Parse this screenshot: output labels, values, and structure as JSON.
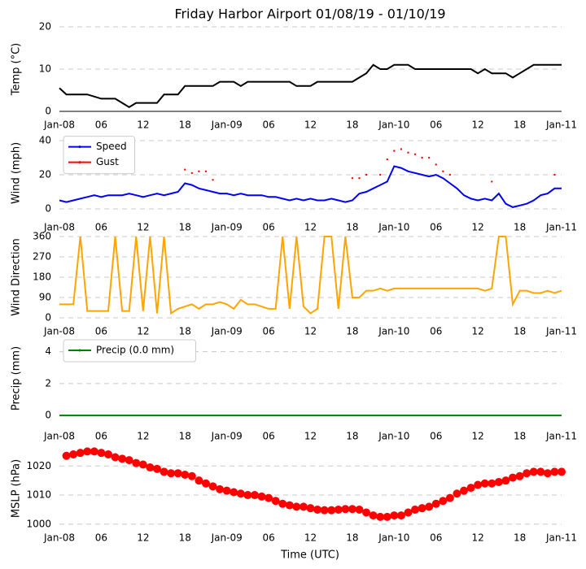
{
  "chart_data": [
    {
      "type": "line",
      "title": "Friday Harbor Airport 01/08/19 - 01/10/19",
      "ylabel": "Temp (°C)",
      "x": [
        0,
        1,
        2,
        3,
        4,
        5,
        6,
        7,
        8,
        9,
        10,
        11,
        12,
        13,
        14,
        15,
        16,
        17,
        18,
        19,
        20,
        21,
        22,
        23,
        24,
        25,
        26,
        27,
        28,
        29,
        30,
        31,
        32,
        33,
        34,
        35,
        36,
        37,
        38,
        39,
        40,
        41,
        42,
        43,
        44,
        45,
        46,
        47,
        48,
        49,
        50,
        51,
        52,
        53,
        54,
        55,
        56,
        57,
        58,
        59,
        60,
        61,
        62,
        63,
        64,
        65,
        66,
        67,
        68,
        69,
        70,
        71,
        72
      ],
      "series": [
        {
          "color": "#000000",
          "values": [
            5.5,
            4,
            4,
            4,
            4,
            3.5,
            3,
            3,
            3,
            2,
            1,
            2,
            2,
            2,
            2,
            4,
            4,
            4,
            6,
            6,
            6,
            6,
            6,
            7,
            7,
            7,
            6,
            7,
            7,
            7,
            7,
            7,
            7,
            7,
            6,
            6,
            6,
            7,
            7,
            7,
            7,
            7,
            7,
            8,
            9,
            11,
            10,
            10,
            11,
            11,
            11,
            10,
            10,
            10,
            10,
            10,
            10,
            10,
            10,
            10,
            9,
            10,
            9,
            9,
            9,
            8,
            9,
            10,
            11,
            11,
            11,
            11,
            11
          ]
        }
      ],
      "xlim": [
        0,
        72
      ],
      "ylim": [
        0,
        20
      ],
      "yticks": [
        0,
        10,
        20
      ],
      "grid": true,
      "xticks": [
        {
          "value": 0,
          "label": "Jan-08"
        },
        {
          "value": 6,
          "label": "06"
        },
        12,
        18,
        {
          "value": 24,
          "label": "Jan-09"
        },
        {
          "value": 30,
          "label": "06"
        },
        {
          "value": 36,
          "label": "12"
        },
        {
          "value": 42,
          "label": "18"
        },
        {
          "value": 48,
          "label": "Jan-10"
        },
        {
          "value": 54,
          "label": "06"
        },
        {
          "value": 60,
          "label": "12"
        },
        {
          "value": 66,
          "label": "18"
        },
        {
          "value": 72,
          "label": "Jan-11"
        }
      ]
    },
    {
      "type": "line",
      "ylabel": "Wind (mph)",
      "legend": "upper left",
      "x": [
        0,
        1,
        2,
        3,
        4,
        5,
        6,
        7,
        8,
        9,
        10,
        11,
        12,
        13,
        14,
        15,
        16,
        17,
        18,
        19,
        20,
        21,
        22,
        23,
        24,
        25,
        26,
        27,
        28,
        29,
        30,
        31,
        32,
        33,
        34,
        35,
        36,
        37,
        38,
        39,
        40,
        41,
        42,
        43,
        44,
        45,
        46,
        47,
        48,
        49,
        50,
        51,
        52,
        53,
        54,
        55,
        56,
        57,
        58,
        59,
        60,
        61,
        62,
        63,
        64,
        65,
        66,
        67,
        68,
        69,
        70,
        71,
        72
      ],
      "series": [
        {
          "name": "Speed",
          "color": "#0000ff",
          "values": [
            5,
            4,
            5,
            6,
            7,
            8,
            7,
            8,
            8,
            8,
            9,
            8,
            7,
            8,
            9,
            8,
            9,
            10,
            15,
            14,
            12,
            11,
            10,
            9,
            9,
            8,
            9,
            8,
            8,
            8,
            7,
            7,
            6,
            5,
            6,
            5,
            6,
            5,
            5,
            6,
            5,
            4,
            5,
            9,
            10,
            12,
            14,
            16,
            25,
            24,
            22,
            21,
            20,
            19,
            20,
            18,
            15,
            12,
            8,
            6,
            5,
            6,
            5,
            9,
            3,
            1,
            2,
            3,
            5,
            8,
            9,
            12,
            12
          ]
        },
        {
          "name": "Gust",
          "color": "#ff0000",
          "kind": "scatter",
          "values": [
            null,
            null,
            null,
            null,
            null,
            null,
            null,
            null,
            null,
            null,
            null,
            null,
            null,
            null,
            null,
            null,
            null,
            null,
            23,
            21,
            22,
            22,
            17,
            null,
            null,
            null,
            null,
            null,
            null,
            null,
            null,
            null,
            null,
            null,
            null,
            null,
            null,
            null,
            null,
            null,
            null,
            null,
            18,
            18,
            20,
            null,
            20,
            29,
            34,
            35,
            33,
            32,
            30,
            30,
            26,
            22,
            20,
            null,
            null,
            null,
            null,
            null,
            16,
            null,
            null,
            null,
            null,
            null,
            null,
            null,
            null,
            20,
            null
          ]
        }
      ],
      "xlim": [
        0,
        72
      ],
      "ylim": [
        -2,
        44
      ],
      "yticks": [
        0,
        20,
        40
      ],
      "grid": true,
      "xticks": [
        {
          "value": 0,
          "label": "Jan-08"
        },
        {
          "value": 6,
          "label": "06"
        },
        12,
        18,
        {
          "value": 24,
          "label": "Jan-09"
        },
        {
          "value": 30,
          "label": "06"
        },
        {
          "value": 36,
          "label": "12"
        },
        {
          "value": 42,
          "label": "18"
        },
        {
          "value": 48,
          "label": "Jan-10"
        },
        {
          "value": 54,
          "label": "06"
        },
        {
          "value": 60,
          "label": "12"
        },
        {
          "value": 66,
          "label": "18"
        },
        {
          "value": 72,
          "label": "Jan-11"
        }
      ]
    },
    {
      "type": "line",
      "ylabel": "Wind Direction",
      "x": [
        0,
        1,
        2,
        3,
        4,
        5,
        6,
        7,
        8,
        9,
        10,
        11,
        12,
        13,
        14,
        15,
        16,
        17,
        18,
        19,
        20,
        21,
        22,
        23,
        24,
        25,
        26,
        27,
        28,
        29,
        30,
        31,
        32,
        33,
        34,
        35,
        36,
        37,
        38,
        39,
        40,
        41,
        42,
        43,
        44,
        45,
        46,
        47,
        48,
        49,
        50,
        51,
        52,
        53,
        54,
        55,
        56,
        57,
        58,
        59,
        60,
        61,
        62,
        63,
        64,
        65,
        66,
        67,
        68,
        69,
        70,
        71,
        72
      ],
      "series": [
        {
          "color": "#ffa500",
          "values": [
            60,
            60,
            60,
            360,
            30,
            30,
            30,
            30,
            360,
            30,
            30,
            360,
            30,
            360,
            20,
            360,
            20,
            40,
            50,
            60,
            40,
            60,
            60,
            70,
            60,
            40,
            80,
            60,
            60,
            50,
            40,
            40,
            360,
            40,
            360,
            50,
            20,
            40,
            360,
            360,
            40,
            360,
            90,
            90,
            120,
            120,
            130,
            120,
            130,
            130,
            130,
            130,
            130,
            130,
            130,
            130,
            130,
            130,
            130,
            130,
            130,
            120,
            130,
            360,
            360,
            60,
            120,
            120,
            110,
            110,
            120,
            110,
            120
          ]
        }
      ],
      "xlim": [
        0,
        72
      ],
      "ylim": [
        0,
        360
      ],
      "yticks": [
        0,
        90,
        180,
        270,
        360
      ],
      "grid": true,
      "xticks": [
        {
          "value": 0,
          "label": "Jan-08"
        },
        {
          "value": 6,
          "label": "06"
        },
        12,
        18,
        {
          "value": 24,
          "label": "Jan-09"
        },
        {
          "value": 30,
          "label": "06"
        },
        {
          "value": 36,
          "label": "12"
        },
        {
          "value": 42,
          "label": "18"
        },
        {
          "value": 48,
          "label": "Jan-10"
        },
        {
          "value": 54,
          "label": "06"
        },
        {
          "value": 60,
          "label": "12"
        },
        {
          "value": 66,
          "label": "18"
        },
        {
          "value": 72,
          "label": "Jan-11"
        }
      ]
    },
    {
      "type": "line",
      "ylabel": "Precip (mm)",
      "legend": "upper left",
      "x": [
        0,
        1,
        2,
        3,
        4,
        5,
        6,
        7,
        8,
        9,
        10,
        11,
        12,
        13,
        14,
        15,
        16,
        17,
        18,
        19,
        20,
        21,
        22,
        23,
        24,
        25,
        26,
        27,
        28,
        29,
        30,
        31,
        32,
        33,
        34,
        35,
        36,
        37,
        38,
        39,
        40,
        41,
        42,
        43,
        44,
        45,
        46,
        47,
        48,
        49,
        50,
        51,
        52,
        53,
        54,
        55,
        56,
        57,
        58,
        59,
        60,
        61,
        62,
        63,
        64,
        65,
        66,
        67,
        68,
        69,
        70,
        71,
        72
      ],
      "series": [
        {
          "name": "Precip (0.0 mm)",
          "color": "#008000",
          "values": [
            0,
            0,
            0,
            0,
            0,
            0,
            0,
            0,
            0,
            0,
            0,
            0,
            0,
            0,
            0,
            0,
            0,
            0,
            0,
            0,
            0,
            0,
            0,
            0,
            0,
            0,
            0,
            0,
            0,
            0,
            0,
            0,
            0,
            0,
            0,
            0,
            0,
            0,
            0,
            0,
            0,
            0,
            0,
            0,
            0,
            0,
            0,
            0,
            0,
            0,
            0,
            0,
            0,
            0,
            0,
            0,
            0,
            0,
            0,
            0,
            0,
            0,
            0,
            0,
            0,
            0,
            0,
            0,
            0,
            0,
            0,
            0,
            0
          ]
        }
      ],
      "xlim": [
        0,
        72
      ],
      "ylim": [
        -0.25,
        4.9
      ],
      "yticks": [
        0,
        2,
        4
      ],
      "grid": true,
      "xticks": [
        {
          "value": 0,
          "label": "Jan-08"
        },
        {
          "value": 6,
          "label": "06"
        },
        12,
        18,
        {
          "value": 24,
          "label": "Jan-09"
        },
        {
          "value": 30,
          "label": "06"
        },
        {
          "value": 36,
          "label": "12"
        },
        {
          "value": 42,
          "label": "18"
        },
        {
          "value": 48,
          "label": "Jan-10"
        },
        {
          "value": 54,
          "label": "06"
        },
        {
          "value": 60,
          "label": "12"
        },
        {
          "value": 66,
          "label": "18"
        },
        {
          "value": 72,
          "label": "Jan-11"
        }
      ]
    },
    {
      "type": "scatter",
      "ylabel": "MSLP (hPa)",
      "xlabel": "Time (UTC)",
      "x": [
        1,
        2,
        3,
        4,
        5,
        6,
        7,
        8,
        9,
        10,
        11,
        12,
        13,
        14,
        15,
        16,
        17,
        18,
        19,
        20,
        21,
        22,
        23,
        24,
        25,
        26,
        27,
        28,
        29,
        30,
        31,
        32,
        33,
        34,
        35,
        36,
        37,
        38,
        39,
        40,
        41,
        42,
        43,
        44,
        45,
        46,
        47,
        48,
        49,
        50,
        51,
        52,
        53,
        54,
        55,
        56,
        57,
        58,
        59,
        60,
        61,
        62,
        63,
        64,
        65,
        66,
        67,
        68,
        69,
        70,
        71,
        72
      ],
      "series": [
        {
          "color": "#ff0000",
          "values": [
            1023.5,
            1024,
            1024.5,
            1025,
            1025,
            1024.5,
            1024,
            1023,
            1022.5,
            1022,
            1021,
            1020.5,
            1019.5,
            1019,
            1018,
            1017.5,
            1017.5,
            1017,
            1016.5,
            1015,
            1014,
            1013,
            1012,
            1011.5,
            1011,
            1010.5,
            1010,
            1010,
            1009.5,
            1009,
            1008,
            1007,
            1006.5,
            1006,
            1006,
            1005.5,
            1005,
            1004.8,
            1004.8,
            1005,
            1005.2,
            1005.2,
            1005,
            1004,
            1003,
            1002.5,
            1002.5,
            1003,
            1003,
            1004,
            1005,
            1005.5,
            1006,
            1007,
            1008,
            1009,
            1010.5,
            1011.5,
            1012.5,
            1013.5,
            1014,
            1014,
            1014.5,
            1015,
            1016,
            1016.5,
            1017.5,
            1018,
            1018,
            1017.5,
            1018,
            1018
          ]
        }
      ],
      "xlim": [
        0,
        72
      ],
      "ylim": [
        998,
        1026.5
      ],
      "yticks": [
        1000,
        1010,
        1020
      ],
      "grid": true,
      "xticks": [
        {
          "value": 0,
          "label": "Jan-08"
        },
        {
          "value": 6,
          "label": "06"
        },
        12,
        18,
        {
          "value": 24,
          "label": "Jan-09"
        },
        {
          "value": 30,
          "label": "06"
        },
        {
          "value": 36,
          "label": "12"
        },
        {
          "value": 42,
          "label": "18"
        },
        {
          "value": 48,
          "label": "Jan-10"
        },
        {
          "value": 54,
          "label": "06"
        },
        {
          "value": 60,
          "label": "12"
        },
        {
          "value": 66,
          "label": "18"
        },
        {
          "value": 72,
          "label": "Jan-11"
        }
      ]
    }
  ]
}
